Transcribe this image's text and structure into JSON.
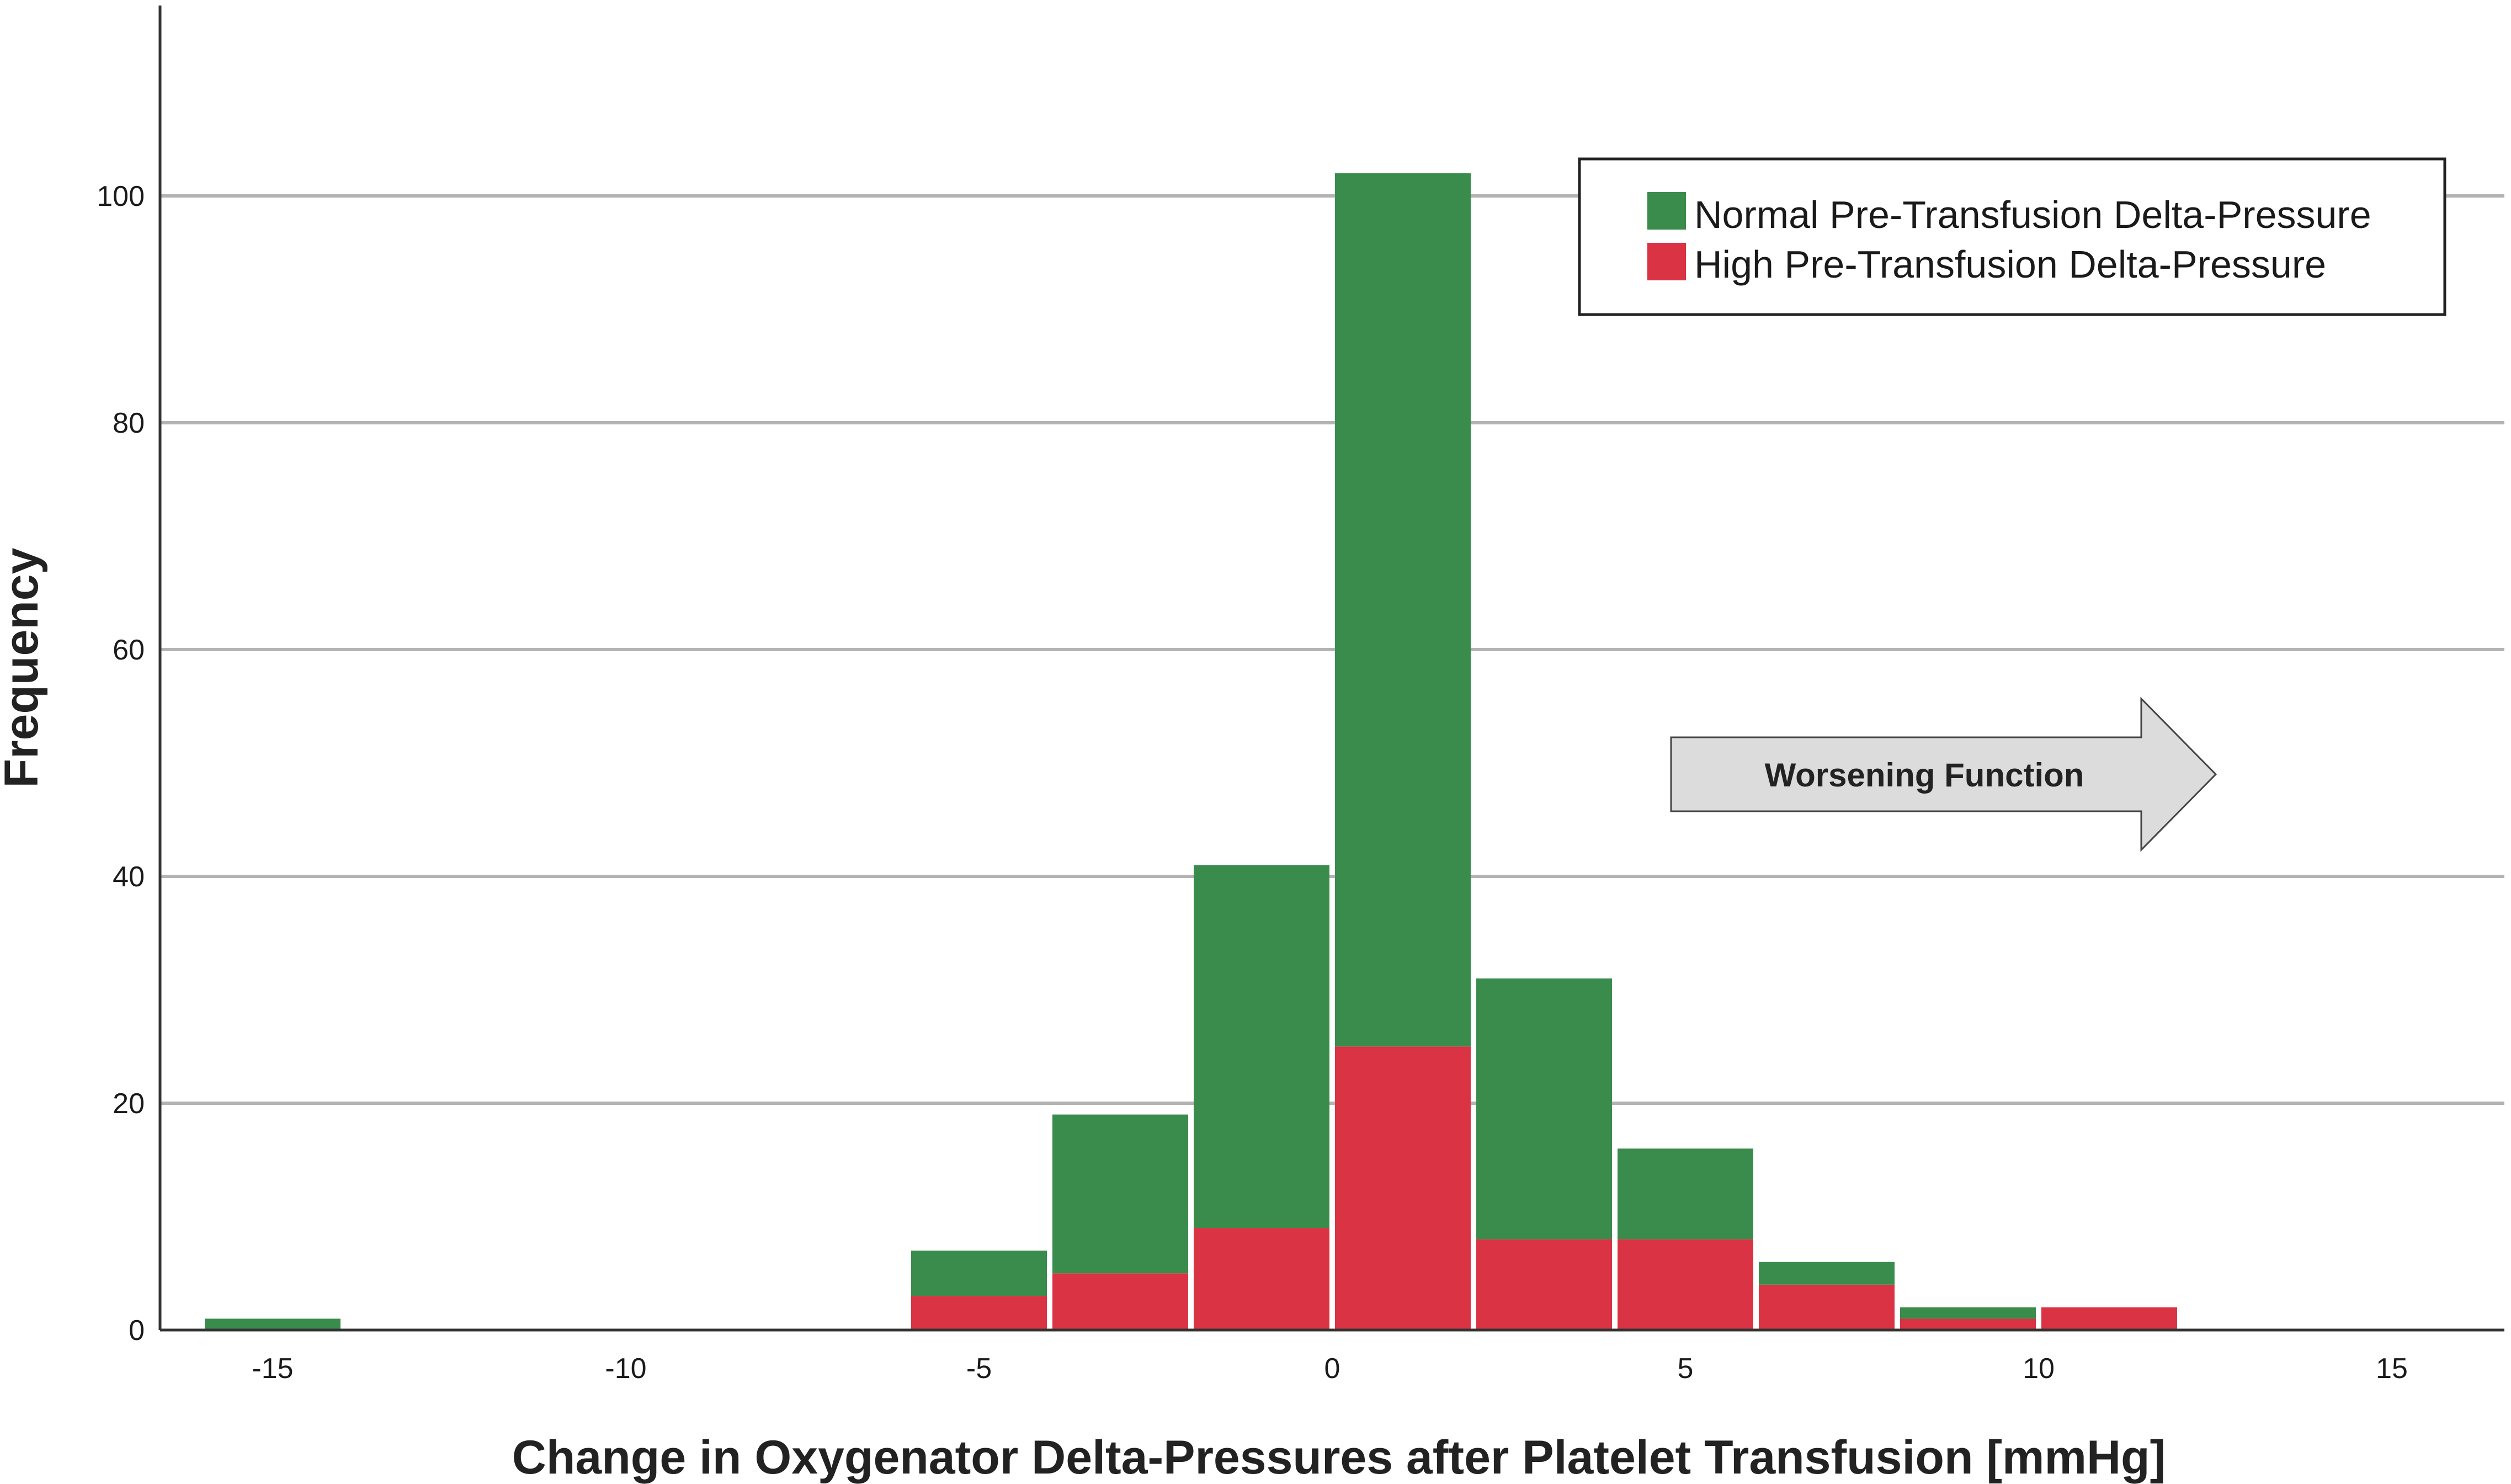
{
  "chart_data": {
    "type": "bar",
    "stacked": true,
    "xlabel": "Change in Oxygenator Delta-Pressures after Platelet Transfusion [mmHg]",
    "ylabel": "Frequency",
    "xlim": [
      -16,
      16
    ],
    "ylim": [
      0,
      112
    ],
    "xticks": [
      -15,
      -10,
      -5,
      0,
      5,
      10,
      15
    ],
    "yticks": [
      0,
      20,
      40,
      60,
      80,
      100
    ],
    "grid": "horizontal",
    "bin_width": 2,
    "bins": [
      [
        -16,
        -14
      ],
      [
        -6,
        -4
      ],
      [
        -4,
        -2
      ],
      [
        -2,
        0
      ],
      [
        0,
        2
      ],
      [
        2,
        4
      ],
      [
        4,
        6
      ],
      [
        6,
        8
      ],
      [
        8,
        10
      ],
      [
        10,
        12
      ]
    ],
    "series": [
      {
        "name": "High Pre-Transfusion Delta-Pressure",
        "color": "#d93344",
        "values": [
          0,
          3,
          5,
          9,
          25,
          8,
          8,
          4,
          1,
          2
        ]
      },
      {
        "name": "Normal Pre-Transfusion Delta-Pressure",
        "color": "#3a8c4c",
        "values": [
          1,
          4,
          14,
          32,
          77,
          23,
          8,
          2,
          1,
          0
        ]
      }
    ],
    "legend": {
      "position": "top-right",
      "entries": [
        {
          "label": "Normal Pre-Transfusion Delta-Pressure",
          "color": "#3a8c4c"
        },
        {
          "label": "High Pre-Transfusion Delta-Pressure",
          "color": "#d93344"
        }
      ]
    },
    "annotation": {
      "text": "Worsening Function",
      "shape": "right-arrow",
      "color": "#dcdcdc"
    }
  }
}
